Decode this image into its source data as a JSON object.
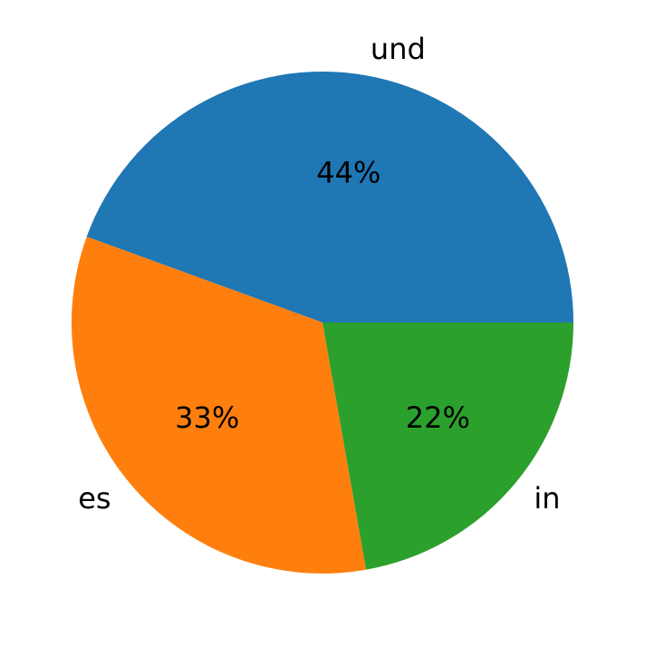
{
  "chart_data": {
    "type": "pie",
    "categories": [
      "und",
      "es",
      "in"
    ],
    "values": [
      44,
      33,
      22
    ],
    "value_labels": [
      "44%",
      "33%",
      "22%"
    ],
    "colors": [
      "#1f77b4",
      "#ff7f0e",
      "#2ca02c"
    ]
  }
}
